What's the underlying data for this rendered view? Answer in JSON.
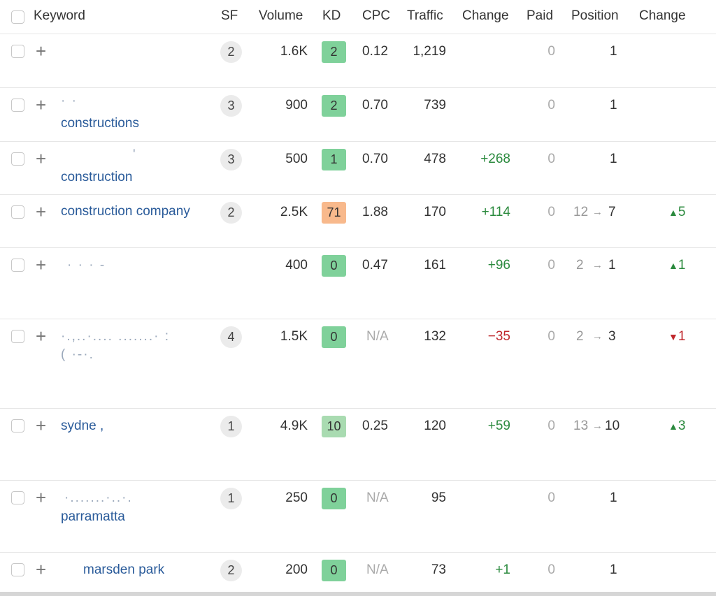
{
  "header": {
    "keyword": "Keyword",
    "sf": "SF",
    "volume": "Volume",
    "kd": "KD",
    "cpc": "CPC",
    "traffic": "Traffic",
    "change": "Change",
    "paid": "Paid",
    "position": "Position",
    "pos_change": "Change"
  },
  "colors": {
    "kd_green": "#7fd19a",
    "kd_light_green": "#a9dbb1",
    "kd_orange": "#f8b98c",
    "link": "#2a5b9a",
    "up": "#2b8a3e",
    "down": "#c0282d"
  },
  "rows": [
    {
      "kw1": "",
      "kw2": "",
      "sf": "2",
      "volume": "1.6K",
      "kd": "2",
      "cpc": "0.12",
      "traffic": "1,219",
      "change": "",
      "paid": "0",
      "pos_from": "",
      "pos_to": "1",
      "pos_change": ""
    },
    {
      "kw1": "· ·",
      "kw2": "constructions",
      "sf": "3",
      "volume": "900",
      "kd": "2",
      "cpc": "0.70",
      "traffic": "739",
      "change": "",
      "paid": "0",
      "pos_from": "",
      "pos_to": "1",
      "pos_change": ""
    },
    {
      "kw1": "'",
      "kw2": "construction",
      "sf": "3",
      "volume": "500",
      "kd": "1",
      "cpc": "0.70",
      "traffic": "478",
      "change": "+268",
      "paid": "0",
      "pos_from": "",
      "pos_to": "1",
      "pos_change": ""
    },
    {
      "kw1": "construction company",
      "kw2": "",
      "sf": "2",
      "volume": "2.5K",
      "kd": "71",
      "cpc": "1.88",
      "traffic": "170",
      "change": "+114",
      "paid": "0",
      "pos_from": "12",
      "pos_to": "7",
      "pos_change": "5"
    },
    {
      "kw1": "·    · ·   -",
      "kw2": "",
      "sf": "",
      "volume": "400",
      "kd": "0",
      "cpc": "0.47",
      "traffic": "161",
      "change": "+96",
      "paid": "0",
      "pos_from": "2",
      "pos_to": "1",
      "pos_change": "1"
    },
    {
      "kw1": "·.,..·.... .......·  :",
      "kw2": "( ·-·.",
      "sf": "4",
      "volume": "1.5K",
      "kd": "0",
      "cpc": "N/A",
      "traffic": "132",
      "change": "−35",
      "paid": "0",
      "pos_from": "2",
      "pos_to": "3",
      "pos_change": "1"
    },
    {
      "kw1": "sydne ,",
      "kw2": "",
      "sf": "1",
      "volume": "4.9K",
      "kd": "10",
      "cpc": "0.25",
      "traffic": "120",
      "change": "+59",
      "paid": "0",
      "pos_from": "13",
      "pos_to": "10",
      "pos_change": "3"
    },
    {
      "kw1": "·.......·..·.",
      "kw2": "parramatta",
      "sf": "1",
      "volume": "250",
      "kd": "0",
      "cpc": "N/A",
      "traffic": "95",
      "change": "",
      "paid": "0",
      "pos_from": "",
      "pos_to": "1",
      "pos_change": ""
    },
    {
      "kw1": "marsden park",
      "kw2": "",
      "sf": "2",
      "volume": "200",
      "kd": "0",
      "cpc": "N/A",
      "traffic": "73",
      "change": "+1",
      "paid": "0",
      "pos_from": "",
      "pos_to": "1",
      "pos_change": ""
    }
  ]
}
